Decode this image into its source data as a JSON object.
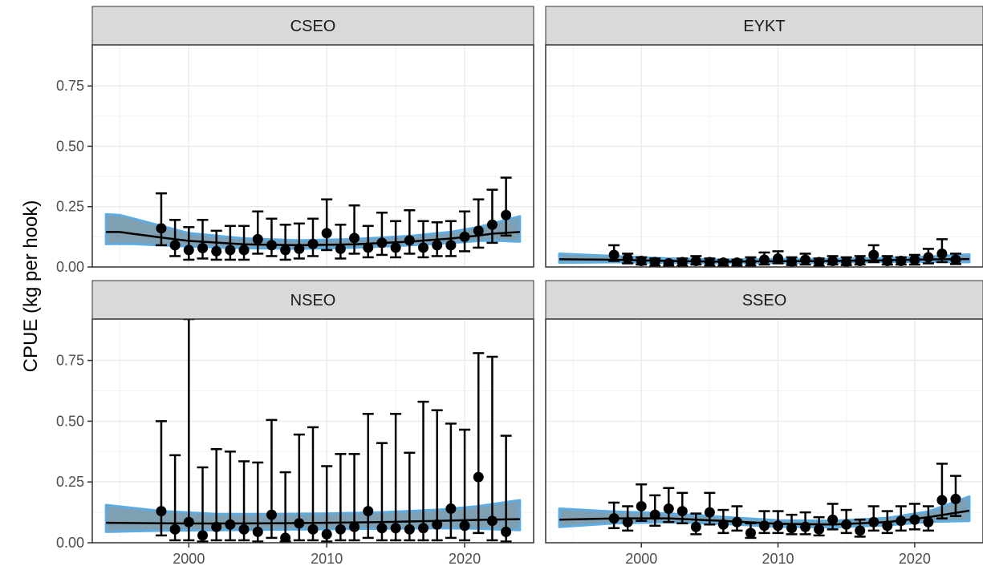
{
  "chart_data": {
    "type": "scatter",
    "ylabel": "CPUE (kg per hook)",
    "xlabel": "",
    "xlim": [
      1993,
      2025
    ],
    "xticks": [
      2000,
      2010,
      2020
    ],
    "yticks": [
      0.0,
      0.25,
      0.5,
      0.75
    ],
    "ytick_labels": [
      "0.00",
      "0.25",
      "0.50",
      "0.75"
    ],
    "colors": {
      "band": "#5dade2",
      "band_fill": "#7f9fb3",
      "line": "#000000",
      "points": "#000000",
      "strip": "#d9d9d9",
      "grid": "#ebebeb"
    },
    "grid": true,
    "panels": [
      {
        "name": "CSEO",
        "ylim": [
          0,
          0.92
        ],
        "points": [
          {
            "x": 1998,
            "y": 0.16,
            "lo": 0.09,
            "hi": 0.305
          },
          {
            "x": 1999,
            "y": 0.09,
            "lo": 0.045,
            "hi": 0.195
          },
          {
            "x": 2000,
            "y": 0.07,
            "lo": 0.03,
            "hi": 0.165
          },
          {
            "x": 2001,
            "y": 0.078,
            "lo": 0.035,
            "hi": 0.195
          },
          {
            "x": 2002,
            "y": 0.065,
            "lo": 0.03,
            "hi": 0.15
          },
          {
            "x": 2003,
            "y": 0.07,
            "lo": 0.03,
            "hi": 0.17
          },
          {
            "x": 2004,
            "y": 0.07,
            "lo": 0.03,
            "hi": 0.17
          },
          {
            "x": 2005,
            "y": 0.115,
            "lo": 0.055,
            "hi": 0.23
          },
          {
            "x": 2006,
            "y": 0.09,
            "lo": 0.045,
            "hi": 0.2
          },
          {
            "x": 2007,
            "y": 0.07,
            "lo": 0.03,
            "hi": 0.175
          },
          {
            "x": 2008,
            "y": 0.075,
            "lo": 0.035,
            "hi": 0.18
          },
          {
            "x": 2009,
            "y": 0.095,
            "lo": 0.045,
            "hi": 0.2
          },
          {
            "x": 2010,
            "y": 0.14,
            "lo": 0.07,
            "hi": 0.28
          },
          {
            "x": 2011,
            "y": 0.075,
            "lo": 0.035,
            "hi": 0.175
          },
          {
            "x": 2012,
            "y": 0.12,
            "lo": 0.055,
            "hi": 0.255
          },
          {
            "x": 2013,
            "y": 0.08,
            "lo": 0.04,
            "hi": 0.17
          },
          {
            "x": 2014,
            "y": 0.1,
            "lo": 0.05,
            "hi": 0.225
          },
          {
            "x": 2015,
            "y": 0.08,
            "lo": 0.04,
            "hi": 0.19
          },
          {
            "x": 2016,
            "y": 0.11,
            "lo": 0.055,
            "hi": 0.235
          },
          {
            "x": 2017,
            "y": 0.08,
            "lo": 0.04,
            "hi": 0.19
          },
          {
            "x": 2018,
            "y": 0.09,
            "lo": 0.045,
            "hi": 0.185
          },
          {
            "x": 2019,
            "y": 0.09,
            "lo": 0.045,
            "hi": 0.19
          },
          {
            "x": 2020,
            "y": 0.125,
            "lo": 0.065,
            "hi": 0.23
          },
          {
            "x": 2021,
            "y": 0.15,
            "lo": 0.08,
            "hi": 0.28
          },
          {
            "x": 2022,
            "y": 0.175,
            "lo": 0.1,
            "hi": 0.32
          },
          {
            "x": 2023,
            "y": 0.215,
            "lo": 0.13,
            "hi": 0.37
          }
        ],
        "trend": [
          {
            "x": 1994,
            "y": 0.145,
            "lo": 0.095,
            "hi": 0.218
          },
          {
            "x": 1995,
            "y": 0.145,
            "lo": 0.096,
            "hi": 0.215
          },
          {
            "x": 1996,
            "y": 0.137,
            "lo": 0.095,
            "hi": 0.2
          },
          {
            "x": 1998,
            "y": 0.122,
            "lo": 0.09,
            "hi": 0.17
          },
          {
            "x": 2000,
            "y": 0.108,
            "lo": 0.085,
            "hi": 0.14
          },
          {
            "x": 2004,
            "y": 0.094,
            "lo": 0.078,
            "hi": 0.118
          },
          {
            "x": 2008,
            "y": 0.09,
            "lo": 0.076,
            "hi": 0.11
          },
          {
            "x": 2012,
            "y": 0.094,
            "lo": 0.08,
            "hi": 0.115
          },
          {
            "x": 2016,
            "y": 0.105,
            "lo": 0.09,
            "hi": 0.128
          },
          {
            "x": 2019,
            "y": 0.118,
            "lo": 0.1,
            "hi": 0.145
          },
          {
            "x": 2021,
            "y": 0.13,
            "lo": 0.108,
            "hi": 0.165
          },
          {
            "x": 2022,
            "y": 0.138,
            "lo": 0.11,
            "hi": 0.18
          },
          {
            "x": 2024,
            "y": 0.145,
            "lo": 0.105,
            "hi": 0.21
          }
        ]
      },
      {
        "name": "EYKT",
        "ylim": [
          0,
          0.92
        ],
        "points": [
          {
            "x": 1998,
            "y": 0.05,
            "lo": 0.025,
            "hi": 0.09
          },
          {
            "x": 1999,
            "y": 0.035,
            "lo": 0.015,
            "hi": 0.055
          },
          {
            "x": 2000,
            "y": 0.025,
            "lo": 0.01,
            "hi": 0.04
          },
          {
            "x": 2001,
            "y": 0.02,
            "lo": 0.005,
            "hi": 0.035
          },
          {
            "x": 2002,
            "y": 0.015,
            "lo": 0.005,
            "hi": 0.025
          },
          {
            "x": 2003,
            "y": 0.02,
            "lo": 0.005,
            "hi": 0.035
          },
          {
            "x": 2004,
            "y": 0.025,
            "lo": 0.01,
            "hi": 0.045
          },
          {
            "x": 2005,
            "y": 0.02,
            "lo": 0.005,
            "hi": 0.035
          },
          {
            "x": 2006,
            "y": 0.018,
            "lo": 0.005,
            "hi": 0.03
          },
          {
            "x": 2007,
            "y": 0.018,
            "lo": 0.005,
            "hi": 0.03
          },
          {
            "x": 2008,
            "y": 0.02,
            "lo": 0.005,
            "hi": 0.04
          },
          {
            "x": 2009,
            "y": 0.03,
            "lo": 0.01,
            "hi": 0.06
          },
          {
            "x": 2010,
            "y": 0.035,
            "lo": 0.015,
            "hi": 0.065
          },
          {
            "x": 2011,
            "y": 0.022,
            "lo": 0.008,
            "hi": 0.04
          },
          {
            "x": 2012,
            "y": 0.03,
            "lo": 0.01,
            "hi": 0.055
          },
          {
            "x": 2013,
            "y": 0.02,
            "lo": 0.005,
            "hi": 0.035
          },
          {
            "x": 2014,
            "y": 0.025,
            "lo": 0.01,
            "hi": 0.045
          },
          {
            "x": 2015,
            "y": 0.022,
            "lo": 0.008,
            "hi": 0.04
          },
          {
            "x": 2016,
            "y": 0.025,
            "lo": 0.01,
            "hi": 0.045
          },
          {
            "x": 2017,
            "y": 0.05,
            "lo": 0.02,
            "hi": 0.09
          },
          {
            "x": 2018,
            "y": 0.025,
            "lo": 0.01,
            "hi": 0.045
          },
          {
            "x": 2019,
            "y": 0.025,
            "lo": 0.01,
            "hi": 0.04
          },
          {
            "x": 2020,
            "y": 0.03,
            "lo": 0.01,
            "hi": 0.05
          },
          {
            "x": 2021,
            "y": 0.04,
            "lo": 0.015,
            "hi": 0.075
          },
          {
            "x": 2022,
            "y": 0.055,
            "lo": 0.02,
            "hi": 0.115
          },
          {
            "x": 2023,
            "y": 0.03,
            "lo": 0.012,
            "hi": 0.055
          }
        ],
        "trend": [
          {
            "x": 1994,
            "y": 0.032,
            "lo": 0.018,
            "hi": 0.055
          },
          {
            "x": 1998,
            "y": 0.03,
            "lo": 0.02,
            "hi": 0.045
          },
          {
            "x": 2002,
            "y": 0.025,
            "lo": 0.018,
            "hi": 0.035
          },
          {
            "x": 2006,
            "y": 0.022,
            "lo": 0.016,
            "hi": 0.03
          },
          {
            "x": 2010,
            "y": 0.024,
            "lo": 0.018,
            "hi": 0.032
          },
          {
            "x": 2014,
            "y": 0.025,
            "lo": 0.019,
            "hi": 0.033
          },
          {
            "x": 2018,
            "y": 0.028,
            "lo": 0.021,
            "hi": 0.037
          },
          {
            "x": 2021,
            "y": 0.031,
            "lo": 0.022,
            "hi": 0.042
          },
          {
            "x": 2024,
            "y": 0.033,
            "lo": 0.02,
            "hi": 0.052
          }
        ]
      },
      {
        "name": "NSEO",
        "ylim": [
          0,
          0.92
        ],
        "points": [
          {
            "x": 1998,
            "y": 0.13,
            "lo": 0.03,
            "hi": 0.5
          },
          {
            "x": 1999,
            "y": 0.055,
            "lo": 0.01,
            "hi": 0.36
          },
          {
            "x": 2000,
            "y": 0.085,
            "lo": 0.01,
            "hi": 0.92
          },
          {
            "x": 2001,
            "y": 0.03,
            "lo": 0.005,
            "hi": 0.31
          },
          {
            "x": 2002,
            "y": 0.065,
            "lo": 0.01,
            "hi": 0.385
          },
          {
            "x": 2003,
            "y": 0.075,
            "lo": 0.01,
            "hi": 0.375
          },
          {
            "x": 2004,
            "y": 0.055,
            "lo": 0.01,
            "hi": 0.335
          },
          {
            "x": 2005,
            "y": 0.045,
            "lo": 0.005,
            "hi": 0.33
          },
          {
            "x": 2006,
            "y": 0.115,
            "lo": 0.02,
            "hi": 0.505
          },
          {
            "x": 2007,
            "y": 0.02,
            "lo": 0.005,
            "hi": 0.29
          },
          {
            "x": 2008,
            "y": 0.08,
            "lo": 0.01,
            "hi": 0.445
          },
          {
            "x": 2009,
            "y": 0.055,
            "lo": 0.01,
            "hi": 0.475
          },
          {
            "x": 2010,
            "y": 0.035,
            "lo": 0.005,
            "hi": 0.315
          },
          {
            "x": 2011,
            "y": 0.055,
            "lo": 0.01,
            "hi": 0.365
          },
          {
            "x": 2012,
            "y": 0.065,
            "lo": 0.01,
            "hi": 0.365
          },
          {
            "x": 2013,
            "y": 0.13,
            "lo": 0.02,
            "hi": 0.53
          },
          {
            "x": 2014,
            "y": 0.06,
            "lo": 0.01,
            "hi": 0.41
          },
          {
            "x": 2015,
            "y": 0.06,
            "lo": 0.01,
            "hi": 0.53
          },
          {
            "x": 2016,
            "y": 0.055,
            "lo": 0.01,
            "hi": 0.37
          },
          {
            "x": 2017,
            "y": 0.06,
            "lo": 0.01,
            "hi": 0.58
          },
          {
            "x": 2018,
            "y": 0.075,
            "lo": 0.01,
            "hi": 0.545
          },
          {
            "x": 2019,
            "y": 0.14,
            "lo": 0.02,
            "hi": 0.49
          },
          {
            "x": 2020,
            "y": 0.07,
            "lo": 0.01,
            "hi": 0.465
          },
          {
            "x": 2021,
            "y": 0.27,
            "lo": 0.04,
            "hi": 0.78
          },
          {
            "x": 2022,
            "y": 0.09,
            "lo": 0.01,
            "hi": 0.765
          },
          {
            "x": 2023,
            "y": 0.045,
            "lo": 0.005,
            "hi": 0.44
          }
        ],
        "trend": [
          {
            "x": 1994,
            "y": 0.082,
            "lo": 0.045,
            "hi": 0.155
          },
          {
            "x": 1998,
            "y": 0.08,
            "lo": 0.05,
            "hi": 0.13
          },
          {
            "x": 2002,
            "y": 0.079,
            "lo": 0.052,
            "hi": 0.118
          },
          {
            "x": 2006,
            "y": 0.08,
            "lo": 0.054,
            "hi": 0.118
          },
          {
            "x": 2010,
            "y": 0.082,
            "lo": 0.056,
            "hi": 0.12
          },
          {
            "x": 2014,
            "y": 0.085,
            "lo": 0.058,
            "hi": 0.125
          },
          {
            "x": 2018,
            "y": 0.09,
            "lo": 0.06,
            "hi": 0.135
          },
          {
            "x": 2021,
            "y": 0.094,
            "lo": 0.058,
            "hi": 0.15
          },
          {
            "x": 2024,
            "y": 0.097,
            "lo": 0.052,
            "hi": 0.175
          }
        ]
      },
      {
        "name": "SSEO",
        "ylim": [
          0,
          0.92
        ],
        "points": [
          {
            "x": 1998,
            "y": 0.1,
            "lo": 0.06,
            "hi": 0.165
          },
          {
            "x": 1999,
            "y": 0.085,
            "lo": 0.05,
            "hi": 0.15
          },
          {
            "x": 2000,
            "y": 0.15,
            "lo": 0.09,
            "hi": 0.24
          },
          {
            "x": 2001,
            "y": 0.115,
            "lo": 0.07,
            "hi": 0.195
          },
          {
            "x": 2002,
            "y": 0.14,
            "lo": 0.085,
            "hi": 0.225
          },
          {
            "x": 2003,
            "y": 0.13,
            "lo": 0.08,
            "hi": 0.205
          },
          {
            "x": 2004,
            "y": 0.065,
            "lo": 0.035,
            "hi": 0.12
          },
          {
            "x": 2005,
            "y": 0.125,
            "lo": 0.075,
            "hi": 0.205
          },
          {
            "x": 2006,
            "y": 0.075,
            "lo": 0.04,
            "hi": 0.135
          },
          {
            "x": 2007,
            "y": 0.085,
            "lo": 0.05,
            "hi": 0.15
          },
          {
            "x": 2008,
            "y": 0.04,
            "lo": 0.02,
            "hi": 0.08
          },
          {
            "x": 2009,
            "y": 0.07,
            "lo": 0.04,
            "hi": 0.13
          },
          {
            "x": 2010,
            "y": 0.07,
            "lo": 0.04,
            "hi": 0.13
          },
          {
            "x": 2011,
            "y": 0.06,
            "lo": 0.035,
            "hi": 0.115
          },
          {
            "x": 2012,
            "y": 0.065,
            "lo": 0.035,
            "hi": 0.125
          },
          {
            "x": 2013,
            "y": 0.055,
            "lo": 0.03,
            "hi": 0.105
          },
          {
            "x": 2014,
            "y": 0.095,
            "lo": 0.055,
            "hi": 0.16
          },
          {
            "x": 2015,
            "y": 0.075,
            "lo": 0.04,
            "hi": 0.135
          },
          {
            "x": 2016,
            "y": 0.05,
            "lo": 0.025,
            "hi": 0.095
          },
          {
            "x": 2017,
            "y": 0.085,
            "lo": 0.05,
            "hi": 0.15
          },
          {
            "x": 2018,
            "y": 0.07,
            "lo": 0.04,
            "hi": 0.13
          },
          {
            "x": 2019,
            "y": 0.09,
            "lo": 0.05,
            "hi": 0.15
          },
          {
            "x": 2020,
            "y": 0.095,
            "lo": 0.055,
            "hi": 0.16
          },
          {
            "x": 2021,
            "y": 0.085,
            "lo": 0.05,
            "hi": 0.15
          },
          {
            "x": 2022,
            "y": 0.175,
            "lo": 0.1,
            "hi": 0.325
          },
          {
            "x": 2023,
            "y": 0.18,
            "lo": 0.11,
            "hi": 0.275
          }
        ],
        "trend": [
          {
            "x": 1994,
            "y": 0.095,
            "lo": 0.065,
            "hi": 0.14
          },
          {
            "x": 1998,
            "y": 0.1,
            "lo": 0.08,
            "hi": 0.128
          },
          {
            "x": 2002,
            "y": 0.1,
            "lo": 0.085,
            "hi": 0.12
          },
          {
            "x": 2006,
            "y": 0.09,
            "lo": 0.078,
            "hi": 0.106
          },
          {
            "x": 2010,
            "y": 0.078,
            "lo": 0.066,
            "hi": 0.092
          },
          {
            "x": 2014,
            "y": 0.075,
            "lo": 0.064,
            "hi": 0.09
          },
          {
            "x": 2018,
            "y": 0.085,
            "lo": 0.072,
            "hi": 0.102
          },
          {
            "x": 2021,
            "y": 0.105,
            "lo": 0.086,
            "hi": 0.128
          },
          {
            "x": 2024,
            "y": 0.132,
            "lo": 0.09,
            "hi": 0.19
          }
        ]
      }
    ]
  }
}
